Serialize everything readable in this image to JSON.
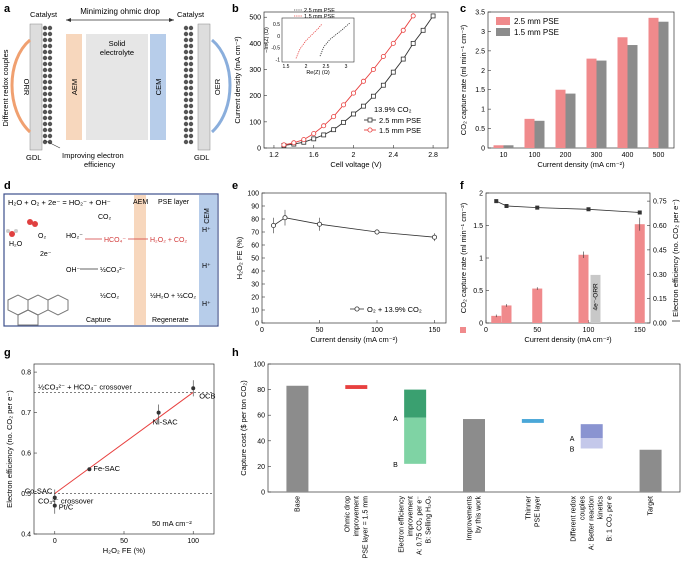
{
  "panel_letters": [
    "a",
    "b",
    "c",
    "d",
    "e",
    "f",
    "g",
    "h"
  ],
  "colors": {
    "red": "#e8403f",
    "pink": "#f08a8c",
    "grey": "#8c8c8c",
    "green": "#3aa070",
    "light_green": "#7fd3a4",
    "blue": "#4aa7d8",
    "lavender": "#8a94d1",
    "light_lavender": "#c4c8ea",
    "aem": "#f7d7bd",
    "cem": "#b7cdea",
    "electrolyte": "#e6e6e6",
    "navy": "#3c4f8c",
    "accent_red": "#d23a3a"
  },
  "panel_a": {
    "title": "Minimizing ohmic drop",
    "catalyst_left": "Catalyst",
    "catalyst_right": "Catalyst",
    "aem": "AEM",
    "cem": "CEM",
    "electrolyte_1": "Solid",
    "electrolyte_2": "electrolyte",
    "orr": "ORR",
    "oer": "OER",
    "gdl_left": "GDL",
    "gdl_right": "GDL",
    "side": "Different redox couples",
    "bottom_1": "Improving electron",
    "bottom_2": "efficiency"
  },
  "panel_d": {
    "eq": "H₂O + O₂ + 2e⁻ = HO₂⁻ + OH⁻",
    "pse_layer": "PSE layer",
    "aem": "AEM",
    "cem": "CEM",
    "o2": "O₂",
    "h2o": "H₂O",
    "co2": "CO₂",
    "ho2": "HO₂⁻",
    "hco4": "HCO₄⁻",
    "h2o2_co2": "H₂O₂ + CO₂",
    "e2": "2e⁻",
    "oh": "OH⁻",
    "half_co3": "½CO₃²⁻",
    "half_co2": "½CO₂",
    "half_h2o_co2": "½H₂O + ½CO₂",
    "hplus_1": "H⁺",
    "hplus_2": "H⁺",
    "hplus_3": "H⁺",
    "capture": "Capture",
    "regenerate": "Regenerate"
  },
  "chart_data": [
    {
      "panel": "b",
      "type": "line",
      "xlabel": "Cell voltage (V)",
      "ylabel": "Current density (mA cm⁻²)",
      "xlim": [
        1.1,
        2.95
      ],
      "ylim": [
        0,
        520
      ],
      "xticks": [
        1.2,
        1.6,
        2.0,
        2.4,
        2.8
      ],
      "yticks": [
        0,
        100,
        200,
        300,
        400,
        500
      ],
      "annotation": "13.9% CO₂",
      "series": [
        {
          "name": "2.5 mm PSE",
          "color": "#333333",
          "marker": "square-open",
          "x": [
            1.3,
            1.4,
            1.5,
            1.6,
            1.7,
            1.8,
            1.9,
            2.0,
            2.1,
            2.2,
            2.3,
            2.4,
            2.5,
            2.6,
            2.7,
            2.8
          ],
          "y": [
            10,
            15,
            22,
            35,
            50,
            70,
            98,
            130,
            160,
            198,
            240,
            290,
            340,
            400,
            450,
            505
          ]
        },
        {
          "name": "1.5 mm PSE",
          "color": "#e8403f",
          "marker": "circle-open",
          "x": [
            1.3,
            1.4,
            1.5,
            1.6,
            1.7,
            1.8,
            1.9,
            2.0,
            2.1,
            2.2,
            2.3,
            2.4,
            2.5,
            2.6
          ],
          "y": [
            12,
            20,
            32,
            55,
            85,
            120,
            165,
            210,
            255,
            300,
            350,
            400,
            450,
            505
          ]
        }
      ],
      "inset": {
        "xlabel": "Re(Z) (Ω)",
        "ylabel": "−Im(Z) (Ω)",
        "xticks": [
          1.5,
          2.0,
          2.5,
          3.0
        ],
        "yticks": [
          -1.0,
          -0.5,
          0.0,
          0.5
        ],
        "xlim": [
          1.4,
          3.2
        ],
        "ylim": [
          -1.1,
          0.75
        ],
        "series": [
          {
            "name": "2.5 mm PSE",
            "color": "#333333",
            "x": [
              2.35,
              2.45,
              2.6,
              2.75,
              2.9,
              3.0,
              3.1
            ],
            "y": [
              -0.85,
              -0.45,
              -0.15,
              0.05,
              0.25,
              0.4,
              0.55
            ]
          },
          {
            "name": "1.5 mm PSE",
            "color": "#e8403f",
            "x": [
              1.75,
              1.85,
              2.0,
              2.15,
              2.3,
              2.4
            ],
            "y": [
              -0.95,
              -0.55,
              -0.2,
              0.05,
              0.3,
              0.5
            ]
          }
        ]
      }
    },
    {
      "panel": "c",
      "type": "bar",
      "xlabel": "Current density (mA cm⁻²)",
      "ylabel": "CO₂ capture rate (ml min⁻¹ cm⁻²)",
      "categories": [
        "10",
        "100",
        "200",
        "300",
        "400",
        "500"
      ],
      "ylim": [
        0,
        3.5
      ],
      "yticks": [
        0,
        0.5,
        1.0,
        1.5,
        2.0,
        2.5,
        3.0,
        3.5
      ],
      "series": [
        {
          "name": "2.5 mm PSE",
          "color": "#f08a8c",
          "values": [
            0.07,
            0.75,
            1.5,
            2.3,
            2.85,
            3.35
          ]
        },
        {
          "name": "1.5 mm PSE",
          "color": "#8c8c8c",
          "values": [
            0.07,
            0.7,
            1.4,
            2.25,
            2.65,
            3.25
          ]
        }
      ]
    },
    {
      "panel": "e",
      "type": "line",
      "xlabel": "Current density (mA cm⁻²)",
      "ylabel": "H₂O₂ FE (%)",
      "xlim": [
        0,
        160
      ],
      "ylim": [
        0,
        100
      ],
      "xticks": [
        0,
        50,
        100,
        150
      ],
      "yticks": [
        0,
        10,
        20,
        30,
        40,
        50,
        60,
        70,
        80,
        90,
        100
      ],
      "series": [
        {
          "name": "O₂ + 13.9% CO₂",
          "color": "#333333",
          "x": [
            10,
            20,
            50,
            100,
            150
          ],
          "y": [
            75,
            81,
            76,
            70,
            66
          ],
          "err": [
            6,
            6,
            5,
            2,
            3
          ]
        }
      ]
    },
    {
      "panel": "f",
      "type": "bar",
      "xlabel": "Current density (mA cm⁻²)",
      "ylabel": "CO₂ capture rate (ml min⁻¹ cm⁻²)",
      "y2label": "Electron efficiency (no. CO₂ per e⁻)",
      "xlim": [
        0,
        160
      ],
      "xticks": [
        0,
        50,
        100,
        150
      ],
      "ylim": [
        0,
        2.0
      ],
      "yticks": [
        0,
        0.5,
        1.0,
        1.5,
        2.0
      ],
      "y2lim": [
        0,
        0.8
      ],
      "y2ticks": [
        0,
        0.15,
        0.3,
        0.45,
        0.6,
        0.75
      ],
      "annotation": "4e⁻-ORR",
      "bars": {
        "name": "CO₂ capture rate",
        "color": "#f08a8c",
        "x": [
          10,
          20,
          50,
          100,
          150
        ],
        "values": [
          0.11,
          0.27,
          0.53,
          1.05,
          1.52
        ],
        "err": [
          0.02,
          0.02,
          0.02,
          0.05,
          0.1
        ]
      },
      "ref_bar": {
        "x": 100,
        "value": 0.74,
        "color": "#c8c8c8"
      },
      "series": [
        {
          "name": "Electron efficiency",
          "color": "#333333",
          "x": [
            10,
            20,
            50,
            100,
            150
          ],
          "y": [
            0.75,
            0.72,
            0.71,
            0.7,
            0.68
          ]
        }
      ]
    },
    {
      "panel": "g",
      "type": "scatter",
      "xlabel": "H₂O₂ FE (%)",
      "ylabel": "Electron efficiency (no. CO₂ per e⁻)",
      "xlim": [
        -15,
        115
      ],
      "ylim": [
        0.4,
        0.82
      ],
      "xticks": [
        0,
        50,
        100
      ],
      "yticks": [
        0.4,
        0.5,
        0.6,
        0.7,
        0.8
      ],
      "annotation": "50 mA cm⁻²",
      "reference_lines": [
        {
          "y": 0.75,
          "label": "½CO₃²⁻ + HCO₄⁻ crossover"
        },
        {
          "y": 0.5,
          "label": "CO₃²⁻ crossover"
        }
      ],
      "points": [
        {
          "label": "Pt/C",
          "x": 0,
          "y": 0.47,
          "err": 0.02
        },
        {
          "label": "Co-SAC",
          "x": 0,
          "y": 0.49,
          "err": 0.02
        },
        {
          "label": "Fe-SAC",
          "x": 25,
          "y": 0.56,
          "err": 0.0
        },
        {
          "label": "Ni-SAC",
          "x": 75,
          "y": 0.7,
          "err": 0.02
        },
        {
          "label": "OCB",
          "x": 100,
          "y": 0.76,
          "err": 0.02
        }
      ],
      "fit": {
        "x": [
          0,
          100
        ],
        "y": [
          0.5,
          0.75
        ]
      }
    },
    {
      "panel": "h",
      "type": "bar",
      "ylabel": "Capture cost ($ per ton CO₂)",
      "ylim": [
        0,
        100
      ],
      "yticks": [
        0,
        20,
        40,
        60,
        80,
        100
      ],
      "categories": [
        "Base",
        "Ohmic drop improvement PSE layer = 1.5 mm",
        "Electron efficiency improvement A: 0.75 CO₂ per e⁻ B: Selling H₂O₂",
        "Improvements by this work",
        "Thinner PSE layer",
        "Different redox couples A: Better reaction kinetics B: 1 CO₂ per e",
        "Target"
      ],
      "category_lines": [
        [
          "Base"
        ],
        [
          "Ohmic drop",
          "improvement",
          "PSE layer = 1.5 mm"
        ],
        [
          "Electron efficiency",
          "improvement",
          "A: 0.75 CO₂ per e⁻",
          "B: Selling H₂O₂"
        ],
        [
          "Improvements",
          "by this work"
        ],
        [
          "Thinner",
          "PSE layer"
        ],
        [
          "Different redox",
          "couples",
          "A: Better reaction",
          "kinetics",
          "B: 1 CO₂ per e"
        ],
        [
          "Target"
        ]
      ],
      "values": [
        83,
        82,
        80,
        57,
        55,
        53,
        33
      ],
      "bar_kinds": [
        "full",
        "marker",
        "stack",
        "full",
        "marker",
        "stack",
        "full"
      ],
      "stacks": {
        "2": {
          "A": [
            58,
            80
          ],
          "B": [
            22,
            58
          ],
          "label_A": "A",
          "label_B": "B"
        },
        "5": {
          "A": [
            42,
            53
          ],
          "B": [
            34,
            42
          ],
          "label_A": "A",
          "label_B": "B"
        }
      },
      "marker_bars": {
        "1": [
          80.5,
          83.5
        ],
        "4": [
          54,
          57
        ]
      }
    }
  ]
}
